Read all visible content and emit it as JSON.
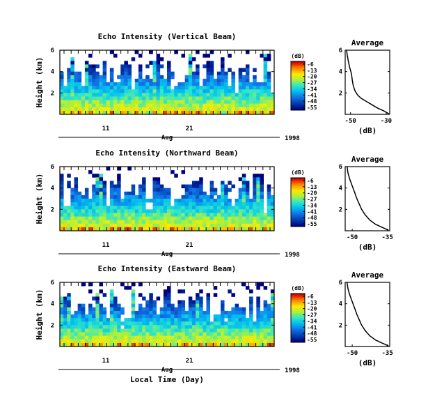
{
  "chart_data": [
    {
      "type": "heatmap",
      "title": "Echo Intensity (Vertical Beam)",
      "ylabel": "Height (km)",
      "yticks": [
        "2",
        "4",
        "6"
      ],
      "ylim": [
        0,
        6
      ],
      "xticks": [
        "11",
        "21"
      ],
      "month_label": "Aug",
      "year_label": "1998",
      "xlabel": "",
      "colorbar": {
        "unit": "(dB)",
        "ticks": [
          "-6",
          "-13",
          "-20",
          "-27",
          "-34",
          "-41",
          "-48",
          "-55"
        ]
      },
      "profile": {
        "title": "Average",
        "xlabel": "(dB)",
        "xticks": [
          "-50",
          "-30"
        ],
        "yticks": [
          "2",
          "4",
          "6"
        ],
        "xlim": [
          -53,
          -28
        ],
        "points": [
          [
            -28.5,
            0.05
          ],
          [
            -31,
            0.3
          ],
          [
            -35,
            0.6
          ],
          [
            -38,
            0.9
          ],
          [
            -41,
            1.2
          ],
          [
            -44,
            1.5
          ],
          [
            -46,
            1.8
          ],
          [
            -47.5,
            2.2
          ],
          [
            -48.5,
            2.7
          ],
          [
            -49,
            3.2
          ],
          [
            -49.5,
            3.8
          ],
          [
            -50.5,
            4.4
          ],
          [
            -51.3,
            5.0
          ],
          [
            -51.8,
            5.5
          ],
          [
            -52.2,
            6.0
          ]
        ]
      }
    },
    {
      "type": "heatmap",
      "title": "Echo Intensity (Northward Beam)",
      "ylabel": "Height (km)",
      "yticks": [
        "2",
        "4",
        "6"
      ],
      "ylim": [
        0,
        6
      ],
      "xticks": [
        "11",
        "21"
      ],
      "month_label": "Aug",
      "year_label": "1998",
      "xlabel": "",
      "colorbar": {
        "unit": "(dB)",
        "ticks": [
          "-6",
          "-13",
          "-20",
          "-27",
          "-34",
          "-41",
          "-48",
          "-55"
        ]
      },
      "profile": {
        "title": "Average",
        "xlabel": "(dB)",
        "xticks": [
          "-50",
          "-35"
        ],
        "yticks": [
          "2",
          "4",
          "6"
        ],
        "xlim": [
          -53,
          -34
        ],
        "points": [
          [
            -34.5,
            0.05
          ],
          [
            -37,
            0.3
          ],
          [
            -40,
            0.6
          ],
          [
            -42.5,
            1.0
          ],
          [
            -44.5,
            1.5
          ],
          [
            -46,
            2.0
          ],
          [
            -47,
            2.5
          ],
          [
            -48,
            3.0
          ],
          [
            -49,
            3.6
          ],
          [
            -50,
            4.2
          ],
          [
            -51,
            4.8
          ],
          [
            -51.8,
            5.4
          ],
          [
            -52.2,
            6.0
          ]
        ]
      }
    },
    {
      "type": "heatmap",
      "title": "Echo Intensity (Eastward Beam)",
      "ylabel": "Height (km)",
      "yticks": [
        "2",
        "4",
        "6"
      ],
      "ylim": [
        0,
        6
      ],
      "xticks": [
        "11",
        "21"
      ],
      "month_label": "Aug",
      "year_label": "1998",
      "xlabel": "Local Time (Day)",
      "colorbar": {
        "unit": "(dB)",
        "ticks": [
          "-6",
          "-13",
          "-20",
          "-27",
          "-34",
          "-41",
          "-48",
          "-55"
        ]
      },
      "profile": {
        "title": "Average",
        "xlabel": "(dB)",
        "xticks": [
          "-50",
          "-35"
        ],
        "yticks": [
          "2",
          "4",
          "6"
        ],
        "xlim": [
          -53,
          -34
        ],
        "points": [
          [
            -34.5,
            0.05
          ],
          [
            -37,
            0.3
          ],
          [
            -40,
            0.6
          ],
          [
            -42.5,
            1.0
          ],
          [
            -44.5,
            1.5
          ],
          [
            -46,
            2.0
          ],
          [
            -47,
            2.5
          ],
          [
            -48,
            3.0
          ],
          [
            -49,
            3.6
          ],
          [
            -50,
            4.2
          ],
          [
            -51,
            4.8
          ],
          [
            -51.8,
            5.4
          ],
          [
            -52.2,
            6.0
          ]
        ]
      }
    }
  ]
}
